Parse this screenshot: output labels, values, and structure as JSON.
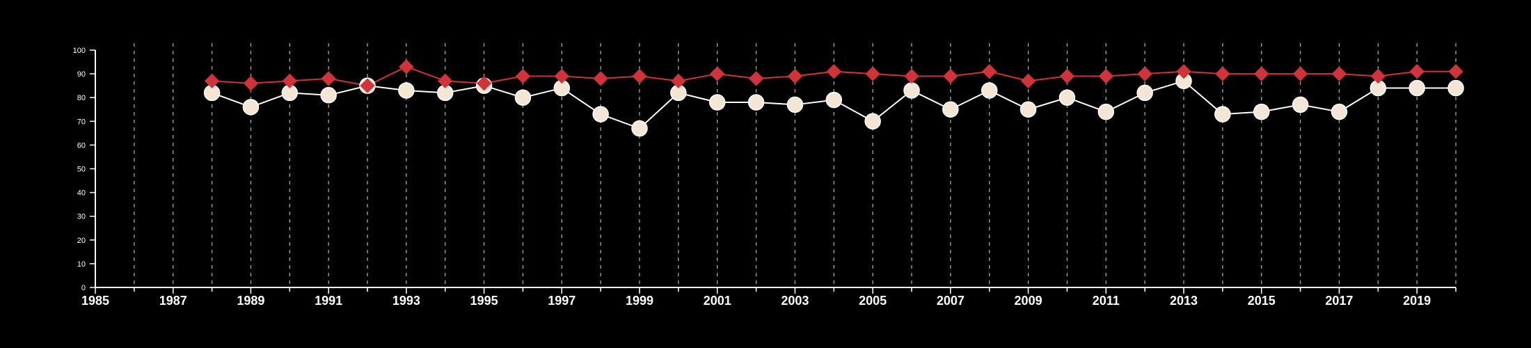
{
  "chart_data": {
    "type": "line",
    "title": "",
    "xlabel": "",
    "ylabel": "",
    "xlim": [
      1985,
      2020
    ],
    "ylim": [
      0,
      100
    ],
    "x_ticks": [
      1985,
      1987,
      1989,
      1991,
      1993,
      1995,
      1997,
      1999,
      2001,
      2003,
      2005,
      2007,
      2009,
      2011,
      2013,
      2015,
      2017,
      2019
    ],
    "y_ticks": [
      0,
      10,
      20,
      30,
      40,
      50,
      60,
      70,
      80,
      90,
      100
    ],
    "grid": {
      "vertical": true,
      "horizontal": false,
      "style": "dashed"
    },
    "background": "#000000",
    "x": [
      1988,
      1989,
      1990,
      1991,
      1992,
      1993,
      1994,
      1995,
      1996,
      1997,
      1998,
      1999,
      2000,
      2001,
      2002,
      2003,
      2004,
      2005,
      2006,
      2007,
      2008,
      2009,
      2010,
      2011,
      2012,
      2013,
      2014,
      2015,
      2016,
      2017,
      2018,
      2019,
      2020
    ],
    "series": [
      {
        "marker": "diamond",
        "color": "#d0343a",
        "values": [
          87,
          86,
          87,
          88,
          85,
          93,
          87,
          86,
          89,
          89,
          88,
          89,
          87,
          90,
          88,
          89,
          91,
          90,
          89,
          89,
          91,
          87,
          89,
          89,
          90,
          91,
          90,
          90,
          90,
          90,
          89,
          91,
          91
        ]
      },
      {
        "marker": "circle",
        "color": "#f3e6d4",
        "line_color": "#ffffff",
        "values": [
          82,
          76,
          82,
          81,
          85,
          83,
          82,
          85,
          80,
          84,
          73,
          67,
          82,
          78,
          78,
          77,
          79,
          70,
          83,
          75,
          83,
          75,
          80,
          74,
          82,
          87,
          73,
          74,
          77,
          74,
          84,
          84,
          84
        ]
      }
    ]
  }
}
